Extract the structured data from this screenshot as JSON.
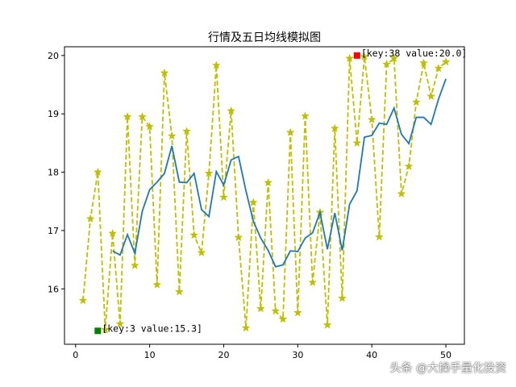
{
  "chart_data": {
    "type": "line",
    "title": "行情及五日均线模拟图",
    "xlabel": "",
    "ylabel": "",
    "xlim": [
      -1.5,
      52.5
    ],
    "ylim": [
      15.05,
      20.15
    ],
    "x_ticks": [
      0,
      10,
      20,
      30,
      40,
      50
    ],
    "y_ticks": [
      16,
      17,
      18,
      19,
      20
    ],
    "grid": false,
    "series": [
      {
        "style": "dashed",
        "marker": "star",
        "color": "#bfbf00",
        "x": [
          1,
          2,
          3,
          4,
          5,
          6,
          7,
          8,
          9,
          10,
          11,
          12,
          13,
          14,
          15,
          16,
          17,
          18,
          19,
          20,
          21,
          22,
          23,
          24,
          25,
          26,
          27,
          28,
          29,
          30,
          31,
          32,
          33,
          34,
          35,
          36,
          37,
          38,
          39,
          40,
          41,
          42,
          43,
          44,
          45,
          46,
          47,
          48,
          49,
          50
        ],
        "values": [
          15.8,
          17.2,
          18.0,
          15.3,
          16.95,
          15.4,
          18.95,
          16.4,
          18.95,
          18.78,
          16.07,
          19.7,
          18.62,
          15.95,
          18.7,
          16.92,
          16.62,
          17.98,
          19.83,
          17.57,
          19.05,
          16.88,
          15.33,
          17.48,
          15.66,
          17.82,
          15.62,
          15.48,
          18.68,
          15.59,
          18.96,
          16.11,
          17.31,
          15.38,
          18.75,
          15.84,
          19.95,
          18.5,
          19.98,
          18.9,
          16.89,
          19.85,
          19.95,
          17.63,
          18.1,
          19.2,
          19.87,
          19.3,
          19.78,
          19.89
        ]
      },
      {
        "style": "solid",
        "marker": "none",
        "color": "#1f77b4",
        "x": [
          5,
          6,
          7,
          8,
          9,
          10,
          11,
          12,
          13,
          14,
          15,
          16,
          17,
          18,
          19,
          20,
          21,
          22,
          23,
          24,
          25,
          26,
          27,
          28,
          29,
          30,
          31,
          32,
          33,
          34,
          35,
          36,
          37,
          38,
          39,
          40,
          41,
          42,
          43,
          44,
          45,
          46,
          47,
          48,
          49,
          50
        ],
        "values": [
          16.65,
          16.58,
          16.93,
          16.61,
          17.33,
          17.7,
          17.83,
          17.98,
          18.45,
          17.83,
          17.82,
          17.98,
          17.36,
          17.24,
          18.01,
          17.78,
          18.21,
          18.27,
          17.68,
          17.16,
          16.87,
          16.66,
          16.38,
          16.41,
          16.65,
          16.64,
          16.87,
          16.96,
          17.31,
          16.68,
          17.3,
          16.66,
          17.45,
          17.68,
          18.6,
          18.63,
          18.84,
          18.82,
          19.1,
          18.65,
          18.49,
          18.94,
          18.94,
          18.82,
          19.25,
          19.6
        ]
      }
    ],
    "annotations": [
      {
        "text": "[key:3  value:15.3]",
        "x": 3,
        "y": 15.28,
        "marker_color": "#008000"
      },
      {
        "text": "[key:38  value:20.0]",
        "x": 38,
        "y": 20.0,
        "marker_color": "#ff0000"
      }
    ]
  },
  "watermark": "头条 @大操手量化投资"
}
